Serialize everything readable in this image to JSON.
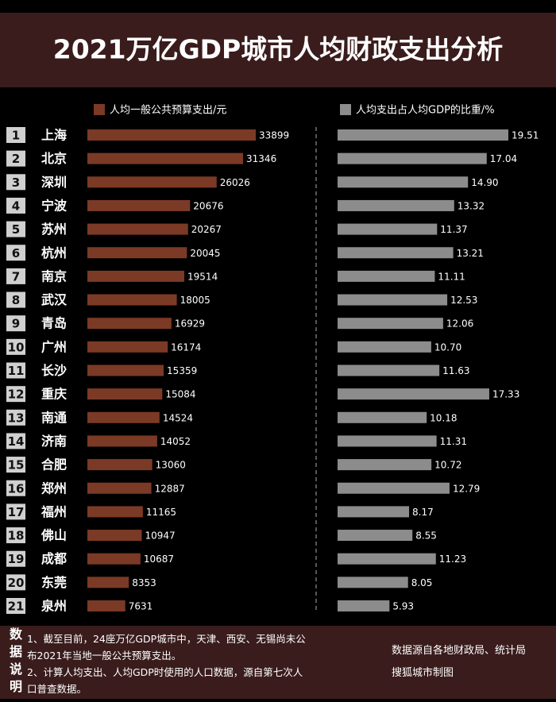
{
  "chart_data": {
    "type": "bar",
    "orientation": "horizontal",
    "title": "2021万亿GDP城市人均财政支出分析",
    "ranks": [
      1,
      2,
      3,
      4,
      5,
      6,
      7,
      8,
      9,
      10,
      11,
      12,
      13,
      14,
      15,
      16,
      17,
      18,
      19,
      20,
      21
    ],
    "categories": [
      "上海",
      "北京",
      "深圳",
      "宁波",
      "苏州",
      "杭州",
      "南京",
      "武汉",
      "青岛",
      "广州",
      "长沙",
      "重庆",
      "南通",
      "济南",
      "合肥",
      "郑州",
      "福州",
      "佛山",
      "成都",
      "东莞",
      "泉州"
    ],
    "series": [
      {
        "name": "人均一般公共预算支出/元",
        "color": "#7b3a25",
        "values": [
          33899,
          31346,
          26026,
          20676,
          20267,
          20045,
          19514,
          18005,
          16929,
          16174,
          15359,
          15084,
          14524,
          14052,
          13060,
          12887,
          11165,
          10947,
          10687,
          8353,
          7631
        ]
      },
      {
        "name": "人均支出占人均GDP的比重/%",
        "color": "#8c8c8c",
        "values": [
          19.51,
          17.04,
          14.9,
          13.32,
          11.37,
          13.21,
          11.11,
          12.53,
          12.06,
          10.7,
          11.63,
          17.33,
          10.18,
          11.31,
          10.72,
          12.79,
          8.17,
          8.55,
          11.23,
          8.05,
          5.93
        ],
        "value_labels": [
          "19.51",
          "17.04",
          "14.90",
          "13.32",
          "11.37",
          "13.21",
          "11.11",
          "12.53",
          "12.06",
          "10.70",
          "11.63",
          "17.33",
          "10.18",
          "11.31",
          "10.72",
          "12.79",
          "8.17",
          "8.55",
          "11.23",
          "8.05",
          "5.93"
        ]
      }
    ]
  },
  "footer": {
    "heading": "数据说明",
    "notes": [
      "1、截至目前，24座万亿GDP城市中，天津、西安、无锡尚未公布2021年当地一般公共预算支出。",
      "2、计算人均支出、人均GDP时使用的人口数据，源自第七次人口普查数据。"
    ],
    "source": "数据源自各地财政局、统计局",
    "credit": "搜狐城市制图"
  }
}
